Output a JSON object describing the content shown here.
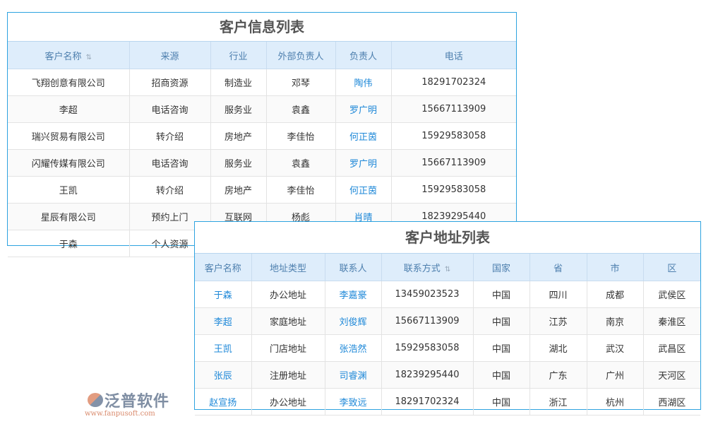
{
  "customer_table": {
    "title": "客户信息列表",
    "columns": [
      "客户名称",
      "来源",
      "行业",
      "外部负责人",
      "负责人",
      "电话"
    ],
    "sortable_column": 0,
    "link_columns": [
      4
    ],
    "rows": [
      [
        "飞翔创意有限公司",
        "招商资源",
        "制造业",
        "邓琴",
        "陶伟",
        "18291702324"
      ],
      [
        "李超",
        "电话咨询",
        "服务业",
        "袁鑫",
        "罗广明",
        "15667113909"
      ],
      [
        "瑞兴贸易有限公司",
        "转介绍",
        "房地产",
        "李佳怡",
        "何正茵",
        "15929583058"
      ],
      [
        "闪耀传媒有限公司",
        "电话咨询",
        "服务业",
        "袁鑫",
        "罗广明",
        "15667113909"
      ],
      [
        "王凯",
        "转介绍",
        "房地产",
        "李佳怡",
        "何正茵",
        "15929583058"
      ],
      [
        "星辰有限公司",
        "预约上门",
        "互联网",
        "杨彪",
        "肖晴",
        "18239295440"
      ],
      [
        "于森",
        "个人资源",
        "",
        "",
        "",
        ""
      ]
    ]
  },
  "address_table": {
    "title": "客户地址列表",
    "columns": [
      "客户名称",
      "地址类型",
      "联系人",
      "联系方式",
      "国家",
      "省",
      "市",
      "区"
    ],
    "sortable_column": 3,
    "link_columns": [
      0,
      2
    ],
    "rows": [
      [
        "于森",
        "办公地址",
        "李嘉豪",
        "13459023523",
        "中国",
        "四川",
        "成都",
        "武侯区"
      ],
      [
        "李超",
        "家庭地址",
        "刘俊辉",
        "15667113909",
        "中国",
        "江苏",
        "南京",
        "秦淮区"
      ],
      [
        "王凯",
        "门店地址",
        "张浩然",
        "15929583058",
        "中国",
        "湖北",
        "武汉",
        "武昌区"
      ],
      [
        "张辰",
        "注册地址",
        "司睿渊",
        "18239295440",
        "中国",
        "广东",
        "广州",
        "天河区"
      ],
      [
        "赵宣扬",
        "办公地址",
        "李致远",
        "18291702324",
        "中国",
        "浙江",
        "杭州",
        "西湖区"
      ]
    ]
  },
  "watermark": {
    "brand": "泛普软件",
    "url": "www.fanpusoft.com"
  },
  "colors": {
    "border": "#2ea3e0",
    "header_bg": "#deedfb",
    "link": "#1e88d8"
  }
}
